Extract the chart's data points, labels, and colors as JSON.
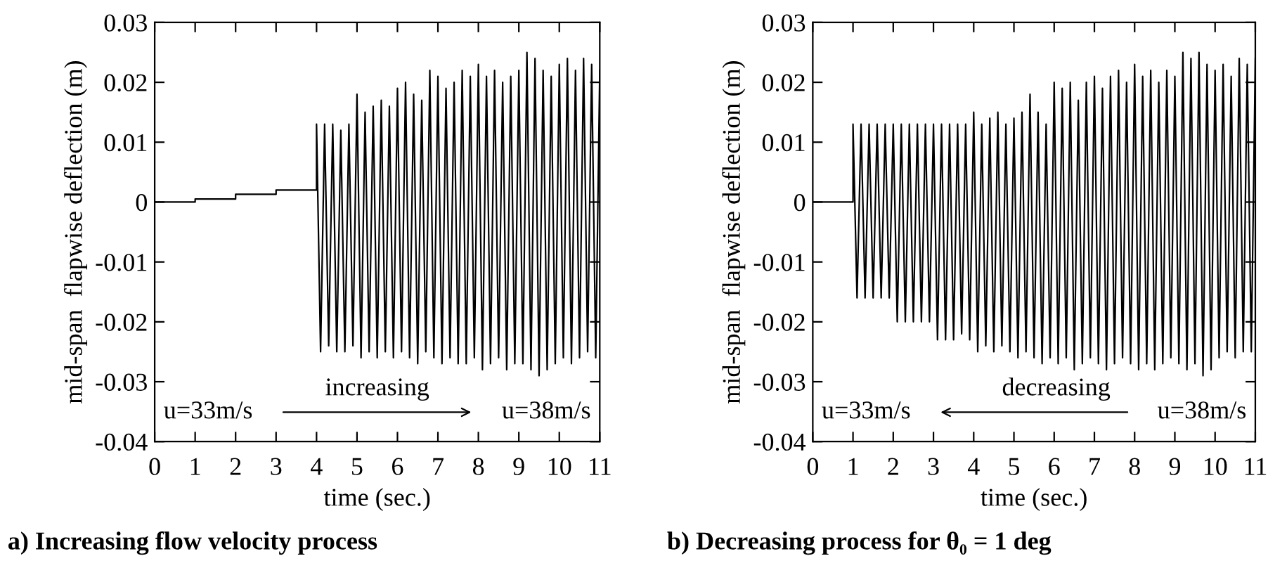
{
  "chart_data": [
    {
      "type": "line",
      "title": "a) Increasing flow velocity process",
      "xlabel": "time (sec.)",
      "ylabel": "mid-span  flapwise deflection (m)",
      "annotations": [
        "u=33m/s",
        "increasing",
        "u=38m/s"
      ],
      "xlim": [
        0,
        11
      ],
      "xticks": [
        0,
        1,
        2,
        3,
        4,
        5,
        6,
        7,
        8,
        9,
        10,
        11
      ],
      "ylim": [
        -0.04,
        0.03
      ],
      "yticks": [
        -0.04,
        -0.03,
        -0.02,
        -0.01,
        0,
        0.01,
        0.02,
        0.03
      ],
      "grid": false,
      "legend": false,
      "series": [
        {
          "color": "#000000",
          "x": [
            0,
            1,
            1,
            2,
            2,
            3,
            3,
            4,
            4.0,
            4.1,
            4.2,
            4.3,
            4.4,
            4.5,
            4.6,
            4.7,
            4.8,
            4.9,
            5.0,
            5.1,
            5.2,
            5.3,
            5.4,
            5.5,
            5.6,
            5.7,
            5.8,
            5.9,
            6.0,
            6.1,
            6.2,
            6.3,
            6.4,
            6.5,
            6.6,
            6.7,
            6.8,
            6.9,
            7.0,
            7.1,
            7.2,
            7.3,
            7.4,
            7.5,
            7.6,
            7.7,
            7.8,
            7.9,
            8.0,
            8.1,
            8.2,
            8.3,
            8.4,
            8.5,
            8.6,
            8.7,
            8.8,
            8.9,
            9.0,
            9.1,
            9.2,
            9.3,
            9.4,
            9.5,
            9.6,
            9.7,
            9.8,
            9.9,
            10.0,
            10.1,
            10.2,
            10.3,
            10.4,
            10.5,
            10.6,
            10.7,
            10.8,
            10.9,
            11.0
          ],
          "values": [
            0,
            0,
            0.0005,
            0.0005,
            0.0013,
            0.0013,
            0.002,
            0.002,
            0.013,
            -0.025,
            0.013,
            -0.024,
            0.013,
            -0.025,
            0.012,
            -0.025,
            0.013,
            -0.024,
            0.018,
            -0.026,
            0.015,
            -0.025,
            0.016,
            -0.026,
            0.017,
            -0.025,
            0.016,
            -0.026,
            0.019,
            -0.025,
            0.02,
            -0.026,
            0.018,
            -0.027,
            0.017,
            -0.025,
            0.022,
            -0.026,
            0.021,
            -0.027,
            0.019,
            -0.026,
            0.02,
            -0.027,
            0.022,
            -0.027,
            0.021,
            -0.026,
            0.023,
            -0.028,
            0.021,
            -0.027,
            0.022,
            -0.026,
            0.02,
            -0.028,
            0.021,
            -0.027,
            0.022,
            -0.027,
            0.025,
            -0.028,
            0.024,
            -0.029,
            0.022,
            -0.028,
            0.021,
            -0.027,
            0.023,
            -0.026,
            0.024,
            -0.027,
            0.022,
            -0.026,
            0.024,
            -0.025,
            0.023,
            -0.026,
            0.022
          ]
        }
      ]
    },
    {
      "type": "line",
      "title": "b) Decreasing process for θ₀ = 1 deg",
      "xlabel": "time (sec.)",
      "ylabel": "mid-span  flapwise deflection (m)",
      "annotations": [
        "u=33m/s",
        "decreasing",
        "u=38m/s"
      ],
      "xlim": [
        0,
        11
      ],
      "xticks": [
        0,
        1,
        2,
        3,
        4,
        5,
        6,
        7,
        8,
        9,
        10,
        11
      ],
      "ylim": [
        -0.04,
        0.03
      ],
      "yticks": [
        -0.04,
        -0.03,
        -0.02,
        -0.01,
        0,
        0.01,
        0.02,
        0.03
      ],
      "grid": false,
      "legend": false,
      "series": [
        {
          "color": "#000000",
          "x": [
            0,
            1,
            1.0,
            1.1,
            1.2,
            1.3,
            1.4,
            1.5,
            1.6,
            1.7,
            1.8,
            1.9,
            2.0,
            2.1,
            2.2,
            2.3,
            2.4,
            2.5,
            2.6,
            2.7,
            2.8,
            2.9,
            3.0,
            3.1,
            3.2,
            3.3,
            3.4,
            3.5,
            3.6,
            3.7,
            3.8,
            3.9,
            4.0,
            4.1,
            4.2,
            4.3,
            4.4,
            4.5,
            4.6,
            4.7,
            4.8,
            4.9,
            5.0,
            5.1,
            5.2,
            5.3,
            5.4,
            5.5,
            5.6,
            5.7,
            5.8,
            5.9,
            6.0,
            6.1,
            6.2,
            6.3,
            6.4,
            6.5,
            6.6,
            6.7,
            6.8,
            6.9,
            7.0,
            7.1,
            7.2,
            7.3,
            7.4,
            7.5,
            7.6,
            7.7,
            7.8,
            7.9,
            8.0,
            8.1,
            8.2,
            8.3,
            8.4,
            8.5,
            8.6,
            8.7,
            8.8,
            8.9,
            9.0,
            9.1,
            9.2,
            9.3,
            9.4,
            9.5,
            9.6,
            9.7,
            9.8,
            9.9,
            10.0,
            10.1,
            10.2,
            10.3,
            10.4,
            10.5,
            10.6,
            10.7,
            10.8,
            10.9,
            11.0
          ],
          "values": [
            0,
            0,
            0.013,
            -0.016,
            0.013,
            -0.016,
            0.013,
            -0.016,
            0.013,
            -0.016,
            0.013,
            -0.016,
            0.013,
            -0.02,
            0.013,
            -0.02,
            0.013,
            -0.02,
            0.013,
            -0.02,
            0.013,
            -0.02,
            0.013,
            -0.023,
            0.013,
            -0.023,
            0.013,
            -0.023,
            0.013,
            -0.022,
            0.013,
            -0.023,
            0.015,
            -0.025,
            0.013,
            -0.024,
            0.014,
            -0.025,
            0.015,
            -0.024,
            0.013,
            -0.025,
            0.014,
            -0.026,
            0.015,
            -0.025,
            0.018,
            -0.026,
            0.015,
            -0.027,
            0.013,
            -0.026,
            0.02,
            -0.027,
            0.019,
            -0.026,
            0.02,
            -0.028,
            0.017,
            -0.027,
            0.02,
            -0.026,
            0.021,
            -0.027,
            0.019,
            -0.028,
            0.021,
            -0.027,
            0.022,
            -0.026,
            0.02,
            -0.027,
            0.023,
            -0.028,
            0.021,
            -0.027,
            0.022,
            -0.028,
            0.02,
            -0.027,
            0.022,
            -0.026,
            0.021,
            -0.027,
            0.025,
            -0.028,
            0.024,
            -0.027,
            0.025,
            -0.029,
            0.023,
            -0.028,
            0.022,
            -0.026,
            0.023,
            -0.025,
            0.021,
            -0.026,
            0.024,
            -0.025,
            0.023,
            -0.025,
            0.024
          ]
        }
      ]
    }
  ]
}
